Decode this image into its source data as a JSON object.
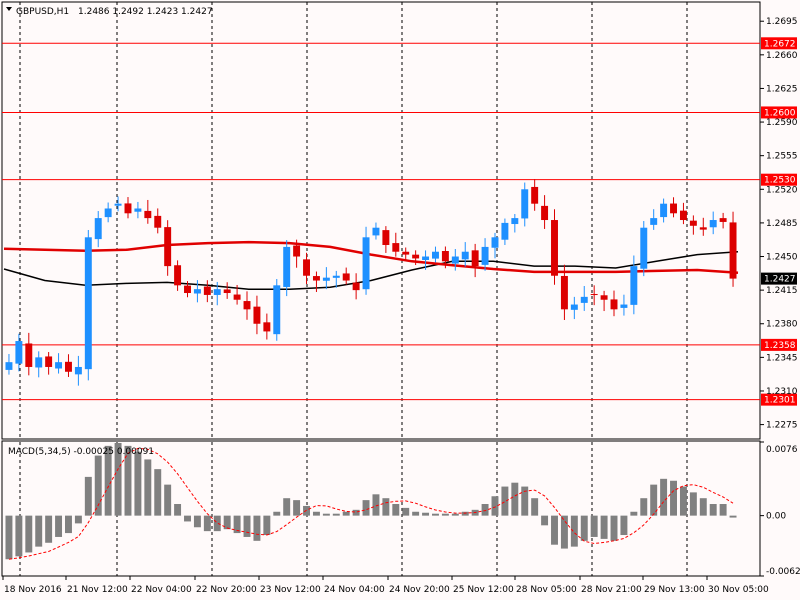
{
  "chart_data": [
    {
      "type": "candlestick",
      "header": {
        "symbol": "GBPUSD,H1",
        "ohlc": "1.2486 1.2492 1.2423 1.2427"
      },
      "ylim": [
        1.226,
        1.2715
      ],
      "y_ticks": [
        "1.2695",
        "1.2660",
        "1.2625",
        "1.2590",
        "1.2555",
        "1.2520",
        "1.2485",
        "1.2450",
        "1.2415",
        "1.2380",
        "1.2345",
        "1.2310",
        "1.2275"
      ],
      "x_labels": [
        "18 Nov 2016",
        "21 Nov 12:00",
        "22 Nov 04:00",
        "22 Nov 20:00",
        "23 Nov 12:00",
        "24 Nov 04:00",
        "24 Nov 20:00",
        "25 Nov 12:00",
        "28 Nov 05:00",
        "28 Nov 21:00",
        "29 Nov 13:00",
        "30 Nov 05:00"
      ],
      "current_price": "1.2427",
      "horizontal_levels": [
        "1.2672",
        "1.2600",
        "1.2530",
        "1.2358",
        "1.2301"
      ],
      "close_path": [
        1.234,
        1.2362,
        1.2335,
        1.2345,
        1.2335,
        1.234,
        1.233,
        1.2335,
        1.247,
        1.249,
        1.25,
        1.2505,
        1.2495,
        1.25,
        1.249,
        1.248,
        1.244,
        1.242,
        1.2412,
        1.2416,
        1.241,
        1.2416,
        1.2412,
        1.2405,
        1.2395,
        1.238,
        1.2372,
        1.242,
        1.246,
        1.245,
        1.243,
        1.2425,
        1.2428,
        1.243,
        1.2425,
        1.2415,
        1.247,
        1.248,
        1.2462,
        1.2455,
        1.2452,
        1.2448,
        1.245,
        1.2455,
        1.2445,
        1.245,
        1.2455,
        1.244,
        1.246,
        1.247,
        1.2485,
        1.249,
        1.252,
        1.2505,
        1.2488,
        1.243,
        1.2395,
        1.24,
        1.2408,
        1.241,
        1.2405,
        1.2395,
        1.24,
        1.244,
        1.248,
        1.249,
        1.2505,
        1.2495,
        1.2488,
        1.2482,
        1.2478,
        1.2488,
        1.2486,
        1.2427
      ],
      "ma_fast": [
        1.2458,
        1.2457,
        1.2456,
        1.2457,
        1.2462,
        1.2464,
        1.2465,
        1.2464,
        1.246,
        1.2452,
        1.2445,
        1.2441,
        1.2437,
        1.2434,
        1.2434,
        1.2434,
        1.2435,
        1.2436,
        1.2433
      ],
      "ma_slow": [
        1.2437,
        1.2425,
        1.242,
        1.2422,
        1.2423,
        1.242,
        1.2416,
        1.2416,
        1.2418,
        1.2425,
        1.2436,
        1.2445,
        1.2445,
        1.244,
        1.244,
        1.2438,
        1.2445,
        1.2452,
        1.2455
      ],
      "macd_label": "MACD(5,34,5) -0.00025 0.00091",
      "macd_ylim": [
        -0.00623,
        0.0076
      ],
      "macd_ticks": [
        "0.0076",
        "0.00",
        "-0.00623"
      ],
      "macd_histogram": [
        -0.0045,
        -0.0042,
        -0.0038,
        -0.0032,
        -0.0028,
        -0.0022,
        -0.0018,
        -0.0008,
        0.004,
        0.0062,
        0.0072,
        0.0075,
        0.0072,
        0.0066,
        0.0058,
        0.0048,
        0.0032,
        0.0012,
        -0.0006,
        -0.0012,
        -0.0016,
        -0.0016,
        -0.0014,
        -0.0018,
        -0.0022,
        -0.0026,
        -0.002,
        0.0004,
        0.0018,
        0.0016,
        0.001,
        0.0004,
        0.0002,
        0.0002,
        0.0004,
        0.0006,
        0.0016,
        0.0022,
        0.0018,
        0.0012,
        0.0008,
        0.0004,
        0.0003,
        0.0002,
        0.0002,
        0.0002,
        0.0004,
        0.0006,
        0.0012,
        0.002,
        0.003,
        0.0034,
        0.003,
        0.0018,
        -0.001,
        -0.003,
        -0.0034,
        -0.0032,
        -0.0026,
        -0.0022,
        -0.0024,
        -0.0026,
        -0.002,
        0.0004,
        0.0018,
        0.0032,
        0.0038,
        0.0036,
        0.003,
        0.0024,
        0.0018,
        0.0012,
        0.0012,
        -0.0002
      ],
      "colors": {
        "background": "#fffafa",
        "bull": "#1e90ff",
        "bear": "#dc0000",
        "level": "#ff0000",
        "ma_fast": "#e00000",
        "ma_slow": "#000000",
        "macd_hist": "#808080",
        "macd_signal": "#ff0000",
        "price_label_bg": "#000000"
      }
    }
  ]
}
